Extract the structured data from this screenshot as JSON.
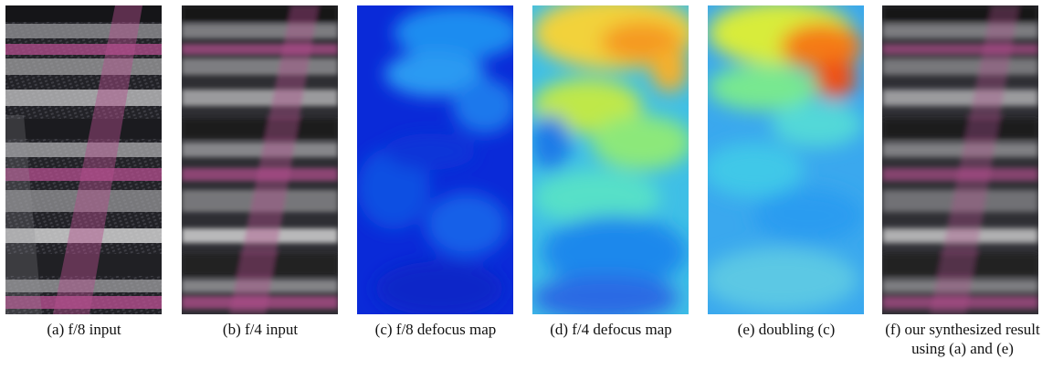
{
  "figure": {
    "panels": [
      {
        "id": "a",
        "kind": "photo",
        "caption": "(a) f/8 input"
      },
      {
        "id": "b",
        "kind": "photo",
        "caption": "(b) f/4 input"
      },
      {
        "id": "c",
        "kind": "defocus-map",
        "caption": "(c) f/8 defocus map"
      },
      {
        "id": "d",
        "kind": "defocus-map",
        "caption": "(d) f/4 defocus map"
      },
      {
        "id": "e",
        "kind": "defocus-map",
        "caption": "(e) doubling (c)"
      },
      {
        "id": "f",
        "kind": "photo",
        "caption_lines": [
          "(f) our synthesized result",
          "using (a) and (e)"
        ]
      }
    ],
    "colors": {
      "fabric_dark": "#2a2a2e",
      "fabric_gray": "#9a9a9c",
      "fabric_light": "#d8d8d8",
      "fabric_pink": "#b44f8f",
      "map_low": "#0a2ad8",
      "map_mid": "#3fe0d0",
      "map_high": "#ffd21a",
      "map_peak": "#f04010"
    }
  }
}
